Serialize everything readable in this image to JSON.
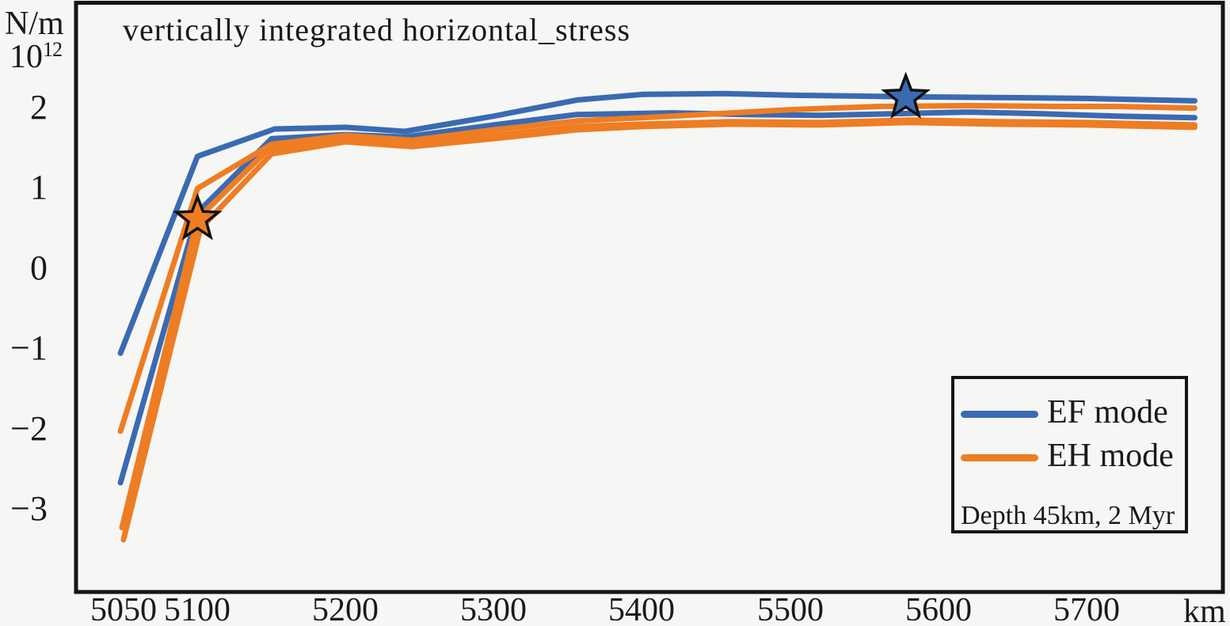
{
  "page": {
    "background": "#f6f6f4",
    "frame_color": "#151515",
    "text_color": "#1a1a1a"
  },
  "title": "vertically integrated horizontal_stress",
  "y_axis": {
    "unit_line1": "N/m",
    "unit_base": "10",
    "unit_exponent": "12",
    "tick_labels": [
      "2",
      "1",
      "0",
      "−1",
      "−2",
      "−3"
    ]
  },
  "x_axis": {
    "tick_labels": [
      "5050",
      "5100",
      "5200",
      "5300",
      "5400",
      "5500",
      "5600",
      "5700"
    ],
    "unit_label": "km"
  },
  "legend": {
    "items": [
      {
        "label": "EF mode",
        "color": "#3a6ab2"
      },
      {
        "label": "EH mode",
        "color": "#ee7d23"
      }
    ],
    "note": "Depth 45km, 2 Myr"
  },
  "chart_data": {
    "type": "line",
    "title": "vertically integrated horizontal_stress",
    "xlabel": "km",
    "ylabel": "N/m 10^12",
    "xlim": [
      5018,
      5792
    ],
    "ylim": [
      -4.02,
      3.31
    ],
    "x_ticks": [
      5050,
      5100,
      5200,
      5300,
      5400,
      5500,
      5600,
      5700
    ],
    "y_ticks": [
      2,
      1,
      0,
      -1,
      -2,
      -3
    ],
    "grid": false,
    "legend_position": "lower-right",
    "line_width": 7,
    "series": [
      {
        "legend": "EF mode",
        "name": "ef-line-1",
        "color": "#3a6ab2",
        "points": [
          [
            5048,
            -1.05
          ],
          [
            5100,
            1.4
          ],
          [
            5152,
            1.74
          ],
          [
            5200,
            1.76
          ],
          [
            5240,
            1.71
          ],
          [
            5300,
            1.9
          ],
          [
            5356,
            2.1
          ],
          [
            5400,
            2.17
          ],
          [
            5455,
            2.18
          ],
          [
            5500,
            2.16
          ],
          [
            5578,
            2.14
          ],
          [
            5650,
            2.13
          ],
          [
            5700,
            2.12
          ],
          [
            5773,
            2.09
          ]
        ]
      },
      {
        "legend": "EF mode",
        "name": "ef-line-2",
        "color": "#3a6ab2",
        "points": [
          [
            5048,
            -2.66
          ],
          [
            5100,
            0.7
          ],
          [
            5150,
            1.62
          ],
          [
            5200,
            1.67
          ],
          [
            5240,
            1.64
          ],
          [
            5300,
            1.79
          ],
          [
            5356,
            1.92
          ],
          [
            5420,
            1.94
          ],
          [
            5470,
            1.92
          ],
          [
            5520,
            1.91
          ],
          [
            5570,
            1.93
          ],
          [
            5620,
            1.95
          ],
          [
            5670,
            1.93
          ],
          [
            5720,
            1.9
          ],
          [
            5773,
            1.88
          ]
        ]
      },
      {
        "legend": "EH mode",
        "name": "eh-line-3",
        "color": "#ee7d23",
        "points": [
          [
            5050,
            -3.37
          ],
          [
            5102,
            0.5
          ],
          [
            5150,
            1.43
          ],
          [
            5200,
            1.58
          ],
          [
            5245,
            1.52
          ],
          [
            5300,
            1.62
          ],
          [
            5356,
            1.73
          ],
          [
            5400,
            1.77
          ],
          [
            5460,
            1.8
          ],
          [
            5520,
            1.79
          ],
          [
            5580,
            1.82
          ],
          [
            5640,
            1.8
          ],
          [
            5700,
            1.79
          ],
          [
            5773,
            1.76
          ]
        ]
      },
      {
        "legend": "EH mode",
        "name": "eh-line-2",
        "color": "#ee7d23",
        "points": [
          [
            5049,
            -3.22
          ],
          [
            5100,
            0.62
          ],
          [
            5148,
            1.49
          ],
          [
            5200,
            1.62
          ],
          [
            5245,
            1.56
          ],
          [
            5300,
            1.66
          ],
          [
            5356,
            1.77
          ],
          [
            5400,
            1.8
          ],
          [
            5460,
            1.83
          ],
          [
            5520,
            1.82
          ],
          [
            5580,
            1.85
          ],
          [
            5640,
            1.83
          ],
          [
            5700,
            1.82
          ],
          [
            5773,
            1.79
          ]
        ]
      },
      {
        "legend": "EH mode",
        "name": "eh-line-1",
        "color": "#ee7d23",
        "points": [
          [
            5048,
            -2.02
          ],
          [
            5100,
            1.0
          ],
          [
            5150,
            1.55
          ],
          [
            5200,
            1.66
          ],
          [
            5245,
            1.6
          ],
          [
            5300,
            1.73
          ],
          [
            5356,
            1.84
          ],
          [
            5400,
            1.88
          ],
          [
            5450,
            1.93
          ],
          [
            5500,
            1.98
          ],
          [
            5560,
            2.02
          ],
          [
            5620,
            2.03
          ],
          [
            5680,
            2.02
          ],
          [
            5720,
            2.02
          ],
          [
            5773,
            2.0
          ]
        ]
      }
    ],
    "markers": [
      {
        "shape": "star",
        "series": "EH mode",
        "x": 5100,
        "y": 0.62,
        "fill": "#ee7d23",
        "stroke": "#111111"
      },
      {
        "shape": "star",
        "series": "EF mode",
        "x": 5578,
        "y": 2.13,
        "fill": "#3a6ab2",
        "stroke": "#111111"
      }
    ]
  }
}
